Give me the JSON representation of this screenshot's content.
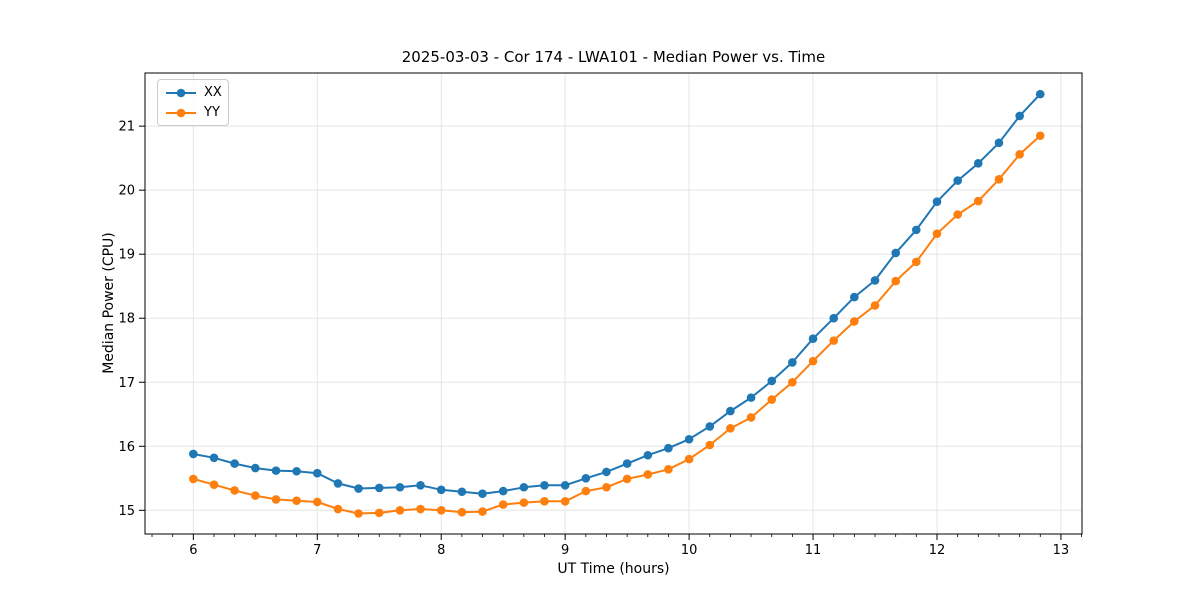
{
  "chart_data": {
    "type": "line",
    "title": "2025-03-03 - Cor 174 - LWA101 - Median Power vs. Time",
    "xlabel": "UT Time (hours)",
    "ylabel": "Median Power (CPU)",
    "xlim": [
      5.61,
      13.17
    ],
    "ylim": [
      14.63,
      21.83
    ],
    "x_ticks": [
      6,
      7,
      8,
      9,
      10,
      11,
      12,
      13
    ],
    "y_ticks": [
      15,
      16,
      17,
      18,
      19,
      20,
      21
    ],
    "x_minor_interval": 0.16667,
    "grid": true,
    "grid_color": "#e5e5e5",
    "legend_position": "upper left",
    "x": [
      6.0,
      6.167,
      6.333,
      6.5,
      6.667,
      6.833,
      7.0,
      7.167,
      7.333,
      7.5,
      7.667,
      7.833,
      8.0,
      8.167,
      8.333,
      8.5,
      8.667,
      8.833,
      9.0,
      9.167,
      9.333,
      9.5,
      9.667,
      9.833,
      10.0,
      10.167,
      10.333,
      10.5,
      10.667,
      10.833,
      11.0,
      11.167,
      11.333,
      11.5,
      11.667,
      11.833,
      12.0,
      12.167,
      12.333,
      12.5,
      12.667,
      12.833
    ],
    "series": [
      {
        "name": "XX",
        "color": "#1f77b4",
        "values": [
          15.88,
          15.82,
          15.73,
          15.66,
          15.62,
          15.61,
          15.58,
          15.42,
          15.34,
          15.35,
          15.36,
          15.39,
          15.32,
          15.29,
          15.26,
          15.3,
          15.36,
          15.39,
          15.39,
          15.5,
          15.6,
          15.73,
          15.86,
          15.97,
          16.11,
          16.31,
          16.55,
          16.76,
          17.02,
          17.31,
          17.68,
          18.0,
          18.33,
          18.59,
          19.02,
          19.38,
          19.82,
          20.15,
          20.42,
          20.74,
          21.16,
          21.5
        ]
      },
      {
        "name": "YY",
        "color": "#ff7f0e",
        "values": [
          15.49,
          15.4,
          15.31,
          15.23,
          15.17,
          15.15,
          15.13,
          15.02,
          14.95,
          14.96,
          15.0,
          15.02,
          15.0,
          14.97,
          14.98,
          15.09,
          15.12,
          15.14,
          15.14,
          15.3,
          15.36,
          15.49,
          15.56,
          15.64,
          15.8,
          16.02,
          16.28,
          16.45,
          16.73,
          17.0,
          17.33,
          17.65,
          17.95,
          18.2,
          18.58,
          18.88,
          19.32,
          19.62,
          19.83,
          20.17,
          20.56,
          20.85
        ]
      }
    ]
  }
}
